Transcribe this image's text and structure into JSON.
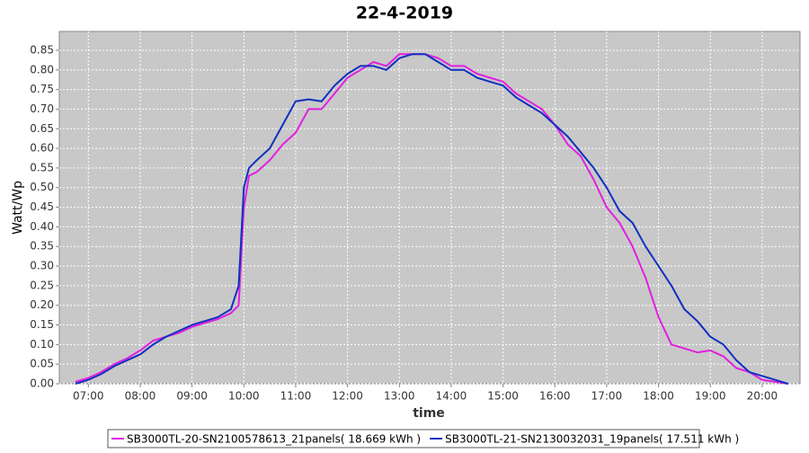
{
  "chart_data": {
    "type": "line",
    "title": "22-4-2019",
    "xlabel": "time",
    "ylabel": "Watt/Wp",
    "x": [
      6.75,
      7,
      7.25,
      7.5,
      7.75,
      8,
      8.25,
      8.5,
      8.75,
      9,
      9.25,
      9.5,
      9.75,
      9.9,
      10,
      10.1,
      10.25,
      10.5,
      10.75,
      11,
      11.25,
      11.5,
      11.75,
      12,
      12.25,
      12.5,
      12.75,
      13,
      13.25,
      13.5,
      13.75,
      14,
      14.25,
      14.5,
      14.75,
      15,
      15.25,
      15.5,
      15.75,
      16,
      16.25,
      16.5,
      16.75,
      17,
      17.25,
      17.5,
      17.75,
      18,
      18.25,
      18.5,
      18.75,
      19,
      19.25,
      19.5,
      19.75,
      20,
      20.25,
      20.5
    ],
    "series": [
      {
        "name": "SB3000TL-20-SN2100578613_21panels( 18.669 kWh )",
        "color": "#e020e0",
        "values": [
          0.005,
          0.015,
          0.03,
          0.05,
          0.065,
          0.085,
          0.11,
          0.12,
          0.13,
          0.145,
          0.155,
          0.165,
          0.18,
          0.2,
          0.45,
          0.53,
          0.54,
          0.57,
          0.61,
          0.64,
          0.7,
          0.7,
          0.74,
          0.78,
          0.8,
          0.82,
          0.81,
          0.84,
          0.84,
          0.84,
          0.83,
          0.81,
          0.81,
          0.79,
          0.78,
          0.77,
          0.74,
          0.72,
          0.7,
          0.66,
          0.61,
          0.58,
          0.52,
          0.45,
          0.41,
          0.35,
          0.27,
          0.17,
          0.1,
          0.09,
          0.08,
          0.085,
          0.07,
          0.04,
          0.03,
          0.01,
          0.005,
          0.0
        ]
      },
      {
        "name": "SB3000TL-21-SN2130032031_19panels( 17.511 kWh )",
        "color": "#1030c0",
        "values": [
          0.0,
          0.01,
          0.025,
          0.045,
          0.06,
          0.075,
          0.1,
          0.12,
          0.135,
          0.15,
          0.16,
          0.17,
          0.19,
          0.25,
          0.5,
          0.55,
          0.57,
          0.6,
          0.66,
          0.72,
          0.725,
          0.72,
          0.76,
          0.79,
          0.81,
          0.81,
          0.8,
          0.83,
          0.84,
          0.84,
          0.82,
          0.8,
          0.8,
          0.78,
          0.77,
          0.76,
          0.73,
          0.71,
          0.69,
          0.66,
          0.63,
          0.59,
          0.55,
          0.5,
          0.44,
          0.41,
          0.35,
          0.3,
          0.25,
          0.19,
          0.16,
          0.12,
          0.1,
          0.06,
          0.03,
          0.02,
          0.01,
          0.0
        ]
      }
    ],
    "xlim": [
      6.44,
      20.73
    ],
    "xticks": [
      {
        "value": 7,
        "label": "07:00"
      },
      {
        "value": 8,
        "label": "08:00"
      },
      {
        "value": 9,
        "label": "09:00"
      },
      {
        "value": 10,
        "label": "10:00"
      },
      {
        "value": 11,
        "label": "11:00"
      },
      {
        "value": 12,
        "label": "12:00"
      },
      {
        "value": 13,
        "label": "13:00"
      },
      {
        "value": 14,
        "label": "14:00"
      },
      {
        "value": 15,
        "label": "15:00"
      },
      {
        "value": 16,
        "label": "16:00"
      },
      {
        "value": 17,
        "label": "17:00"
      },
      {
        "value": 18,
        "label": "18:00"
      },
      {
        "value": 19,
        "label": "19:00"
      },
      {
        "value": 20,
        "label": "20:00"
      }
    ],
    "ylim": [
      0,
      0.898
    ],
    "yticks": [
      {
        "value": 0,
        "label": "0.00"
      },
      {
        "value": 0.05,
        "label": "0.05"
      },
      {
        "value": 0.1,
        "label": "0.10"
      },
      {
        "value": 0.15,
        "label": "0.15"
      },
      {
        "value": 0.2,
        "label": "0.20"
      },
      {
        "value": 0.25,
        "label": "0.25"
      },
      {
        "value": 0.3,
        "label": "0.30"
      },
      {
        "value": 0.35,
        "label": "0.35"
      },
      {
        "value": 0.4,
        "label": "0.40"
      },
      {
        "value": 0.45,
        "label": "0.45"
      },
      {
        "value": 0.5,
        "label": "0.50"
      },
      {
        "value": 0.55,
        "label": "0.55"
      },
      {
        "value": 0.6,
        "label": "0.60"
      },
      {
        "value": 0.65,
        "label": "0.65"
      },
      {
        "value": 0.7,
        "label": "0.70"
      },
      {
        "value": 0.75,
        "label": "0.75"
      },
      {
        "value": 0.8,
        "label": "0.80"
      },
      {
        "value": 0.85,
        "label": "0.85"
      }
    ],
    "grid": true,
    "legend": "bottom"
  }
}
